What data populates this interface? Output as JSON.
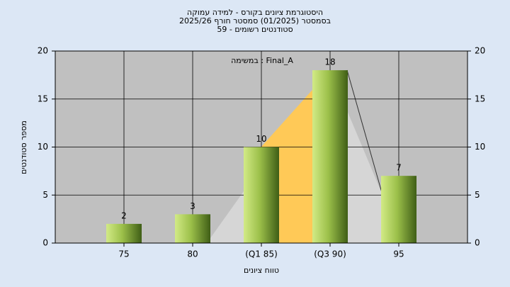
{
  "chart_data": {
    "type": "bar",
    "title": [
      "היסטוגרמת ציונים בקורס - למידה עמוקה",
      "בסמסטר  (01/2025)  סמסטר חורף 2025/26",
      "סטודנטים רשומים - 59"
    ],
    "annotation": "במשימה : Final_A",
    "x_label": "טווח ציונים",
    "y_label": "מספר סטודנטים",
    "categories": [
      "75",
      "80",
      "(Q1 85)",
      "(Q3 90)",
      "95"
    ],
    "values": [
      2,
      3,
      10,
      18,
      7
    ],
    "ylim": [
      0,
      20
    ],
    "yticks": [
      0,
      5,
      10,
      15,
      20
    ],
    "y2lim": [
      0,
      20
    ],
    "y2ticks": [
      0,
      5,
      10,
      15,
      20
    ],
    "grid": true
  }
}
